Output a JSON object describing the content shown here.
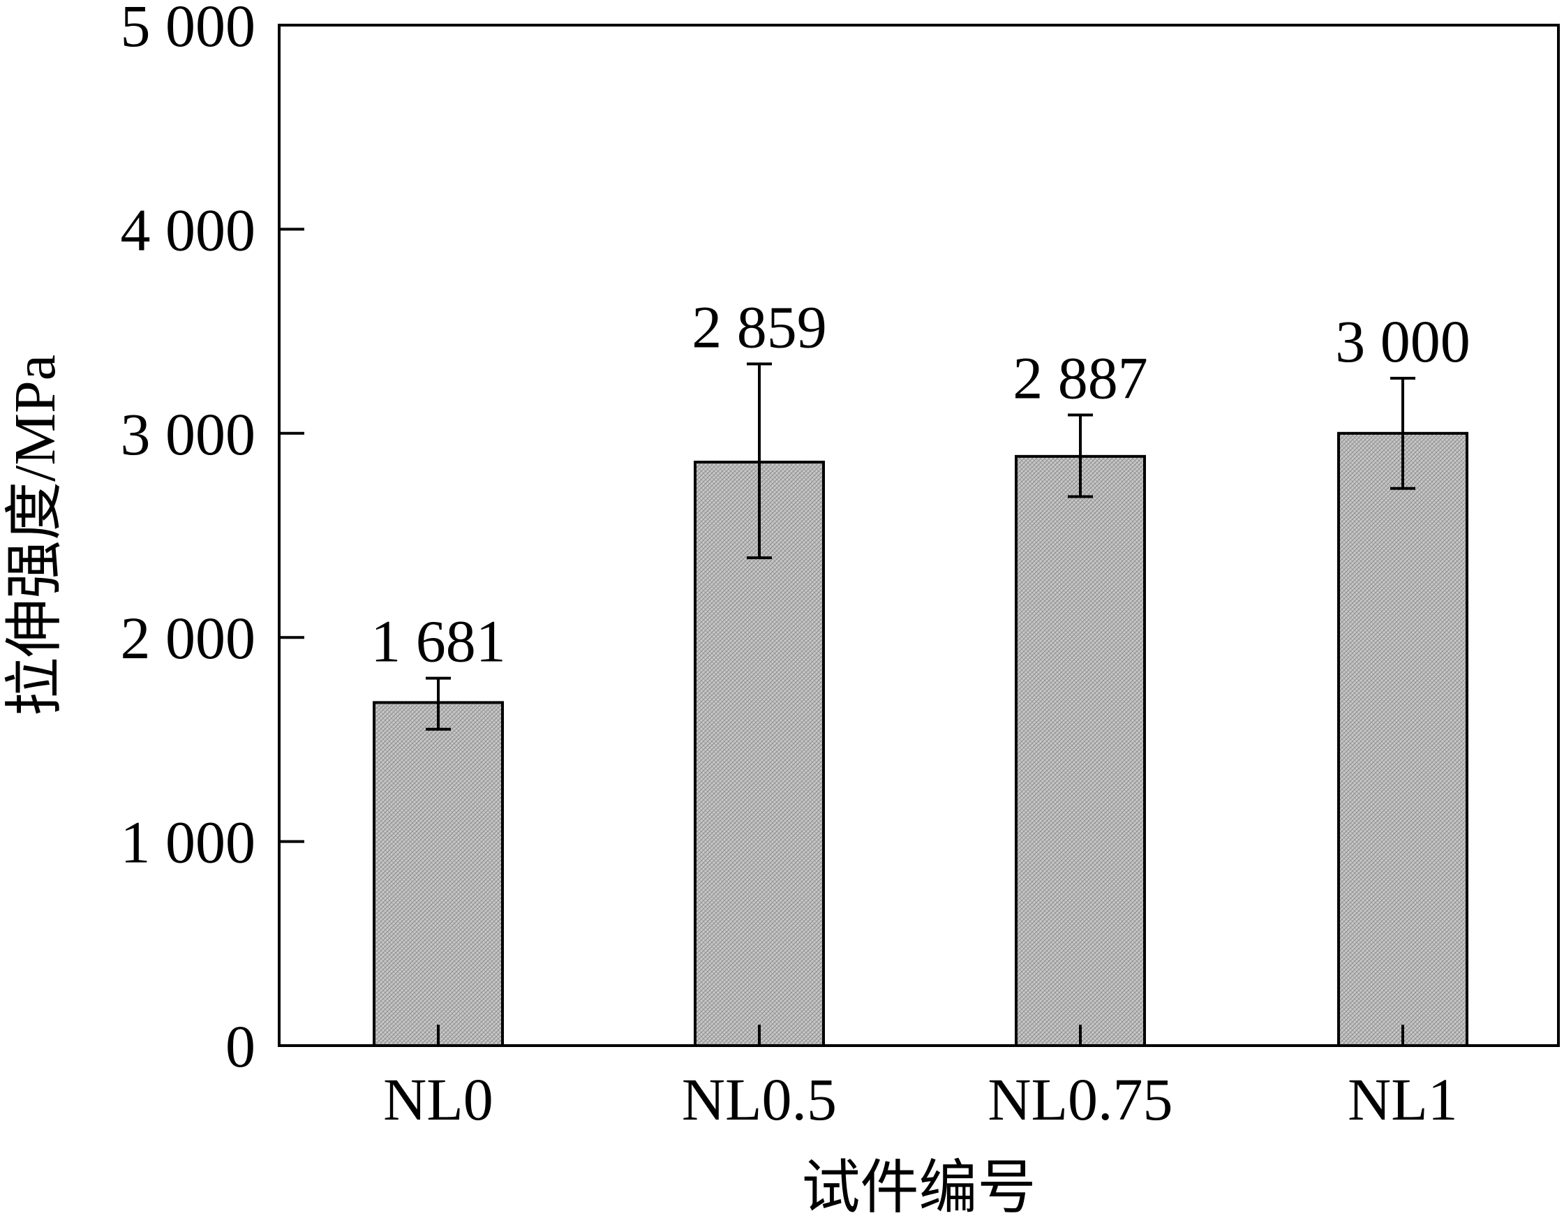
{
  "chart_data": {
    "type": "bar",
    "title": "",
    "xlabel": "试件编号",
    "ylabel": "拉伸强度/MPa",
    "ylim": [
      0,
      5000
    ],
    "yticks": [
      0,
      1000,
      2000,
      3000,
      4000,
      5000
    ],
    "ytick_labels": [
      "0",
      "1 000",
      "2 000",
      "3 000",
      "4 000",
      "5 000"
    ],
    "categories": [
      "NL0",
      "NL0.5",
      "NL0.75",
      "NL1"
    ],
    "values": [
      1681,
      2859,
      2887,
      3000
    ],
    "value_labels": [
      "1 681",
      "2 859",
      "2 887",
      "3 000"
    ],
    "error_low": [
      1550,
      2390,
      2690,
      2730
    ],
    "error_high": [
      1800,
      3340,
      3090,
      3270
    ],
    "grid": false,
    "bar_color": "#bfbfbf"
  }
}
